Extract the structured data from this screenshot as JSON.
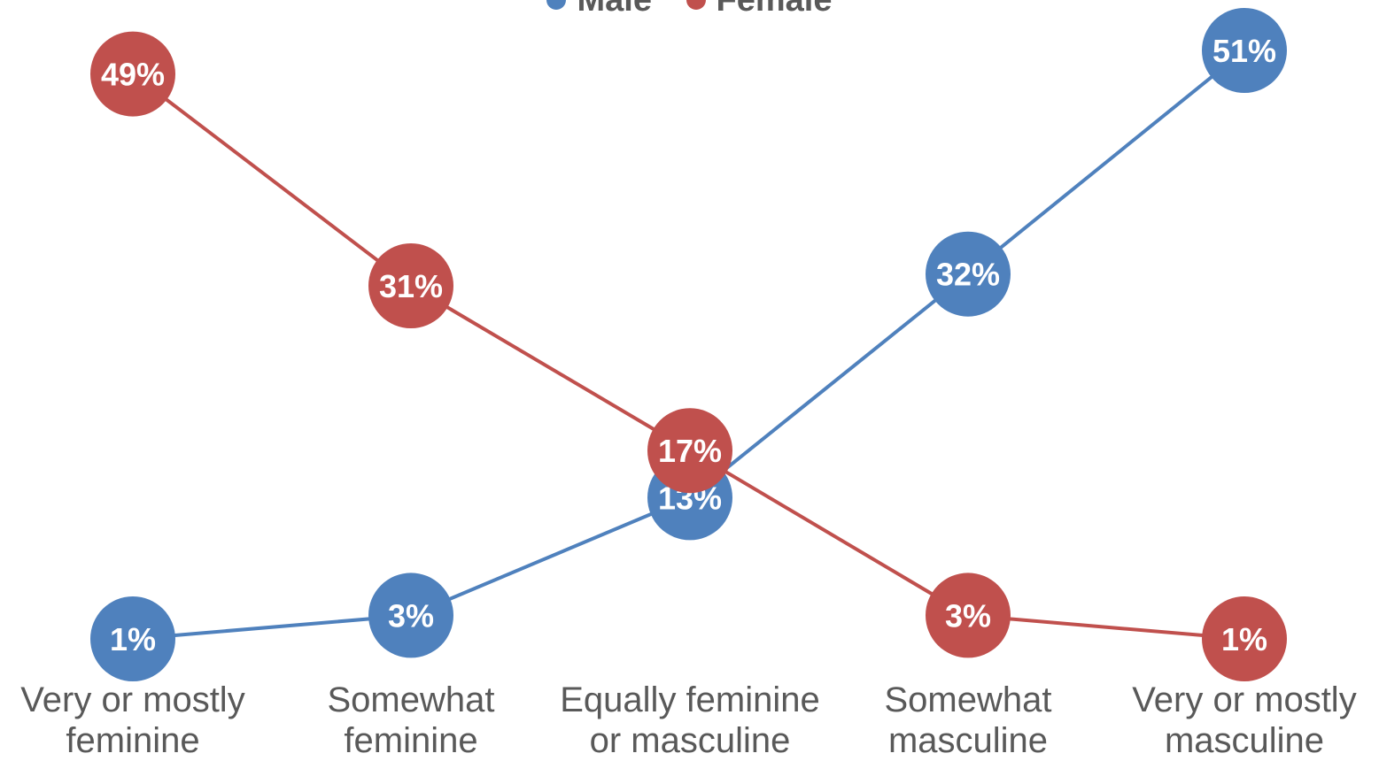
{
  "chart_data": {
    "type": "line",
    "categories": [
      [
        "Very or mostly",
        "feminine"
      ],
      [
        "Somewhat",
        "feminine"
      ],
      [
        "Equally feminine",
        "or masculine"
      ],
      [
        "Somewhat",
        "masculine"
      ],
      [
        "Very or mostly",
        "masculine"
      ]
    ],
    "series": [
      {
        "name": "Male",
        "color": "#4F81BD",
        "values": [
          1,
          3,
          13,
          32,
          51
        ],
        "labels": [
          "1%",
          "3%",
          "13%",
          "32%",
          "51%"
        ]
      },
      {
        "name": "Female",
        "color": "#C0504D",
        "values": [
          49,
          31,
          17,
          3,
          1
        ],
        "labels": [
          "49%",
          "31%",
          "17%",
          "3%",
          "1%"
        ]
      }
    ],
    "ylim": [
      0,
      55
    ],
    "legend": "top-center",
    "grid": false
  }
}
